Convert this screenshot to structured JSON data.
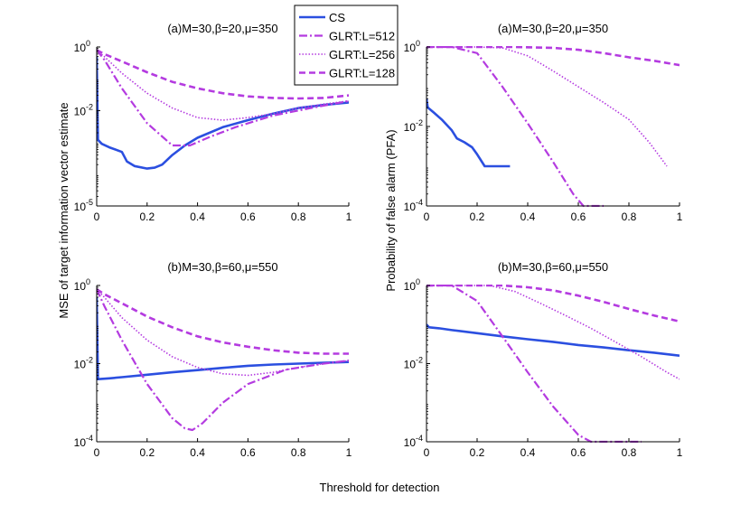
{
  "figure": {
    "xlabel": "Threshold for detection",
    "ylabel_left": "MSE of target information vector estimate",
    "ylabel_right": "Probability of false alarm (PFA)"
  },
  "colors": {
    "cs": "#2b4fe0",
    "glrt": "#b43be0",
    "axis": "#000000"
  },
  "chart_data": [
    {
      "id": "mse_a",
      "type": "line",
      "title": "(a)M=30,β=20,μ=350",
      "yscale": "log",
      "xlim": [
        0,
        1
      ],
      "ytick_exps": [
        -5,
        -2,
        0
      ],
      "ytick_labels": [
        "10",
        "10",
        "10"
      ],
      "ytick_sups": [
        "-5",
        "-2",
        "0"
      ],
      "xticks": [
        0,
        0.2,
        0.4,
        0.6,
        0.8,
        1
      ],
      "xtick_labels": [
        "0",
        "0.2",
        "0.4",
        "0.6",
        "0.8",
        "1"
      ],
      "series": [
        {
          "name": "CS",
          "style": "cs",
          "x": [
            0,
            0.005,
            0.02,
            0.05,
            0.1,
            0.12,
            0.15,
            0.2,
            0.23,
            0.26,
            0.3,
            0.35,
            0.4,
            0.5,
            0.6,
            0.7,
            0.8,
            0.9,
            1.0
          ],
          "y": [
            0.5,
            0.0012,
            0.0009,
            0.0007,
            0.0005,
            0.00025,
            0.00018,
            0.00015,
            0.00016,
            0.0002,
            0.0004,
            0.0008,
            0.0014,
            0.003,
            0.005,
            0.008,
            0.012,
            0.015,
            0.018
          ]
        },
        {
          "name": "GLRT:L=512",
          "style": "dashdot",
          "x": [
            0,
            0.03,
            0.1,
            0.2,
            0.3,
            0.37,
            0.45,
            0.55,
            0.7,
            0.85,
            1.0
          ],
          "y": [
            0.8,
            0.4,
            0.05,
            0.004,
            0.0008,
            0.0008,
            0.0015,
            0.003,
            0.007,
            0.012,
            0.02
          ]
        },
        {
          "name": "GLRT:L=256",
          "style": "dotted",
          "x": [
            0,
            0.03,
            0.1,
            0.2,
            0.3,
            0.4,
            0.5,
            0.6,
            0.7,
            0.8,
            0.9,
            1.0
          ],
          "y": [
            0.8,
            0.5,
            0.15,
            0.035,
            0.012,
            0.006,
            0.005,
            0.006,
            0.008,
            0.012,
            0.016,
            0.02
          ]
        },
        {
          "name": "GLRT:L=128",
          "style": "dashed",
          "x": [
            0,
            0.03,
            0.1,
            0.2,
            0.3,
            0.4,
            0.5,
            0.6,
            0.7,
            0.8,
            0.9,
            1.0
          ],
          "y": [
            0.8,
            0.6,
            0.35,
            0.16,
            0.08,
            0.05,
            0.035,
            0.028,
            0.025,
            0.024,
            0.025,
            0.03
          ]
        }
      ]
    },
    {
      "id": "pfa_a",
      "type": "line",
      "title": "(a)M=30,β=20,μ=350",
      "yscale": "log",
      "xlim": [
        0,
        1
      ],
      "ytick_exps": [
        -4,
        -2,
        0
      ],
      "ytick_labels": [
        "10",
        "10",
        "10"
      ],
      "ytick_sups": [
        "-4",
        "-2",
        "0"
      ],
      "xticks": [
        0,
        0.2,
        0.4,
        0.6,
        0.8,
        1
      ],
      "xtick_labels": [
        "0",
        "0.2",
        "0.4",
        "0.6",
        "0.8",
        "1"
      ],
      "series": [
        {
          "name": "CS",
          "style": "cs",
          "x": [
            0,
            0.005,
            0.03,
            0.06,
            0.1,
            0.12,
            0.15,
            0.18,
            0.2,
            0.23,
            0.26,
            0.33
          ],
          "y": [
            0.05,
            0.03,
            0.022,
            0.015,
            0.008,
            0.005,
            0.004,
            0.003,
            0.002,
            0.001,
            0.001,
            0.001
          ]
        },
        {
          "name": "GLRT:L=512",
          "style": "dashdot",
          "x": [
            0,
            0.1,
            0.2,
            0.3,
            0.4,
            0.5,
            0.58,
            0.62,
            0.7
          ],
          "y": [
            1,
            1,
            0.7,
            0.1,
            0.012,
            0.0013,
            0.0002,
            0.0001,
            0.0001
          ]
        },
        {
          "name": "GLRT:L=256",
          "style": "dotted",
          "x": [
            0,
            0.2,
            0.3,
            0.4,
            0.5,
            0.6,
            0.7,
            0.8,
            0.88,
            0.93,
            0.95
          ],
          "y": [
            1,
            1,
            0.95,
            0.6,
            0.25,
            0.1,
            0.04,
            0.015,
            0.004,
            0.0015,
            0.001
          ]
        },
        {
          "name": "GLRT:L=128",
          "style": "dashed",
          "x": [
            0,
            0.35,
            0.5,
            0.6,
            0.7,
            0.8,
            0.9,
            1.0
          ],
          "y": [
            1,
            1,
            0.95,
            0.85,
            0.7,
            0.55,
            0.45,
            0.35
          ]
        }
      ]
    },
    {
      "id": "mse_b",
      "type": "line",
      "title": "(b)M=30,β=60,μ=550",
      "yscale": "log",
      "xlim": [
        0,
        1
      ],
      "ytick_exps": [
        -4,
        -2,
        0
      ],
      "ytick_labels": [
        "10",
        "10",
        "10"
      ],
      "ytick_sups": [
        "-4",
        "-2",
        "0"
      ],
      "xticks": [
        0,
        0.2,
        0.4,
        0.6,
        0.8,
        1
      ],
      "xtick_labels": [
        "0",
        "0.2",
        "0.4",
        "0.6",
        "0.8",
        "1"
      ],
      "series": [
        {
          "name": "CS",
          "style": "cs",
          "x": [
            0,
            0.005,
            0.05,
            0.1,
            0.2,
            0.3,
            0.4,
            0.5,
            0.6,
            0.7,
            0.8,
            0.9,
            1.0
          ],
          "y": [
            0.5,
            0.004,
            0.0042,
            0.0045,
            0.0052,
            0.006,
            0.0068,
            0.0078,
            0.0088,
            0.0095,
            0.01,
            0.0105,
            0.011
          ]
        },
        {
          "name": "GLRT:L=512",
          "style": "dashdot",
          "x": [
            0,
            0.03,
            0.1,
            0.2,
            0.3,
            0.35,
            0.38,
            0.42,
            0.5,
            0.6,
            0.75,
            0.9,
            1.0
          ],
          "y": [
            0.8,
            0.3,
            0.04,
            0.003,
            0.0004,
            0.00022,
            0.0002,
            0.0003,
            0.001,
            0.003,
            0.007,
            0.01,
            0.012
          ]
        },
        {
          "name": "GLRT:L=256",
          "style": "dotted",
          "x": [
            0,
            0.03,
            0.1,
            0.2,
            0.3,
            0.4,
            0.5,
            0.6,
            0.7,
            0.8,
            0.9,
            1.0
          ],
          "y": [
            0.8,
            0.5,
            0.15,
            0.04,
            0.015,
            0.008,
            0.0055,
            0.005,
            0.006,
            0.008,
            0.01,
            0.012
          ]
        },
        {
          "name": "GLRT:L=128",
          "style": "dashed",
          "x": [
            0,
            0.03,
            0.1,
            0.2,
            0.3,
            0.4,
            0.5,
            0.6,
            0.7,
            0.8,
            0.9,
            1.0
          ],
          "y": [
            0.8,
            0.6,
            0.35,
            0.16,
            0.085,
            0.05,
            0.035,
            0.027,
            0.022,
            0.019,
            0.018,
            0.018
          ]
        }
      ]
    },
    {
      "id": "pfa_b",
      "type": "line",
      "title": "(b)M=30,β=60,μ=550",
      "yscale": "log",
      "xlim": [
        0,
        1
      ],
      "ytick_exps": [
        -4,
        -2,
        0
      ],
      "ytick_labels": [
        "10",
        "10",
        "10"
      ],
      "ytick_sups": [
        "-4",
        "-2",
        "0"
      ],
      "xticks": [
        0,
        0.2,
        0.4,
        0.6,
        0.8,
        1
      ],
      "xtick_labels": [
        "0",
        "0.2",
        "0.4",
        "0.6",
        "0.8",
        "1"
      ],
      "series": [
        {
          "name": "CS",
          "style": "cs",
          "x": [
            0,
            0.01,
            0.05,
            0.1,
            0.2,
            0.3,
            0.4,
            0.5,
            0.6,
            0.7,
            0.8,
            0.9,
            1.0
          ],
          "y": [
            0.1,
            0.085,
            0.08,
            0.072,
            0.06,
            0.05,
            0.042,
            0.036,
            0.03,
            0.026,
            0.022,
            0.019,
            0.016
          ]
        },
        {
          "name": "GLRT:L=512",
          "style": "dashdot",
          "x": [
            0,
            0.1,
            0.2,
            0.3,
            0.4,
            0.5,
            0.6,
            0.65,
            0.7,
            0.85
          ],
          "y": [
            1,
            1,
            0.4,
            0.05,
            0.006,
            0.0008,
            0.00015,
            0.0001,
            0.0001,
            0.0001
          ]
        },
        {
          "name": "GLRT:L=256",
          "style": "dotted",
          "x": [
            0,
            0.25,
            0.35,
            0.45,
            0.55,
            0.65,
            0.75,
            0.85,
            0.95,
            1.0
          ],
          "y": [
            1,
            1,
            0.7,
            0.35,
            0.17,
            0.08,
            0.035,
            0.015,
            0.006,
            0.004
          ]
        },
        {
          "name": "GLRT:L=128",
          "style": "dashed",
          "x": [
            0,
            0.3,
            0.4,
            0.5,
            0.6,
            0.7,
            0.8,
            0.9,
            1.0
          ],
          "y": [
            1,
            1,
            0.9,
            0.75,
            0.55,
            0.38,
            0.25,
            0.17,
            0.12
          ]
        }
      ]
    }
  ],
  "legend": {
    "placement": "top-center",
    "items": [
      {
        "label": "CS",
        "style": "cs"
      },
      {
        "label": "GLRT:L=512",
        "style": "dashdot"
      },
      {
        "label": "GLRT:L=256",
        "style": "dotted"
      },
      {
        "label": "GLRT:L=128",
        "style": "dashed"
      }
    ]
  }
}
